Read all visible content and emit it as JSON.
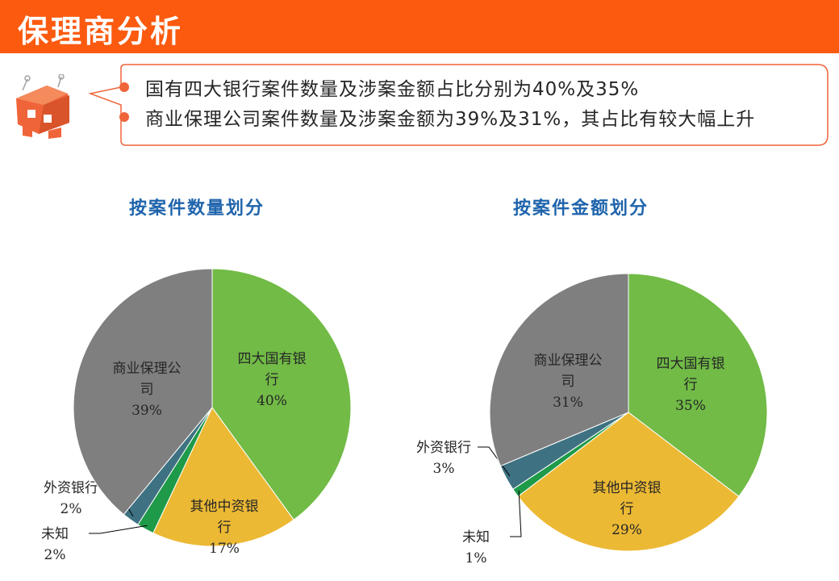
{
  "header": {
    "title": "保理商分析"
  },
  "callout": {
    "bullets": [
      "国有四大银行案件数量及涉案金额占比分别为40%及35%",
      "商业保理公司案件数量及涉案金额为39%及31%，其占比有较大幅上升"
    ]
  },
  "colors": {
    "title_bar": "#fb5a0f",
    "chart_title": "#1f64ac",
    "四大国有银行": "#71bb46",
    "其他中资银行": "#ecb934",
    "未知": "#1e9a48",
    "外资银行": "#3e7282",
    "商业保理公司": "#7f7f7f"
  },
  "chart_data": [
    {
      "type": "pie",
      "title": "按案件数量划分",
      "slices": [
        {
          "label": "四大国有银行",
          "value": 40,
          "display": "40%"
        },
        {
          "label": "其他中资银行",
          "value": 17,
          "display": "17%"
        },
        {
          "label": "未知",
          "value": 2,
          "display": "2%"
        },
        {
          "label": "外资银行",
          "value": 2,
          "display": "2%"
        },
        {
          "label": "商业保理公司",
          "value": 39,
          "display": "39%"
        }
      ]
    },
    {
      "type": "pie",
      "title": "按案件金额划分",
      "slices": [
        {
          "label": "四大国有银行",
          "value": 35,
          "display": "35%"
        },
        {
          "label": "其他中资银行",
          "value": 29,
          "display": "29%"
        },
        {
          "label": "未知",
          "value": 1,
          "display": "1%"
        },
        {
          "label": "外资银行",
          "value": 3,
          "display": "3%"
        },
        {
          "label": "商业保理公司",
          "value": 31,
          "display": "31%"
        }
      ]
    }
  ]
}
